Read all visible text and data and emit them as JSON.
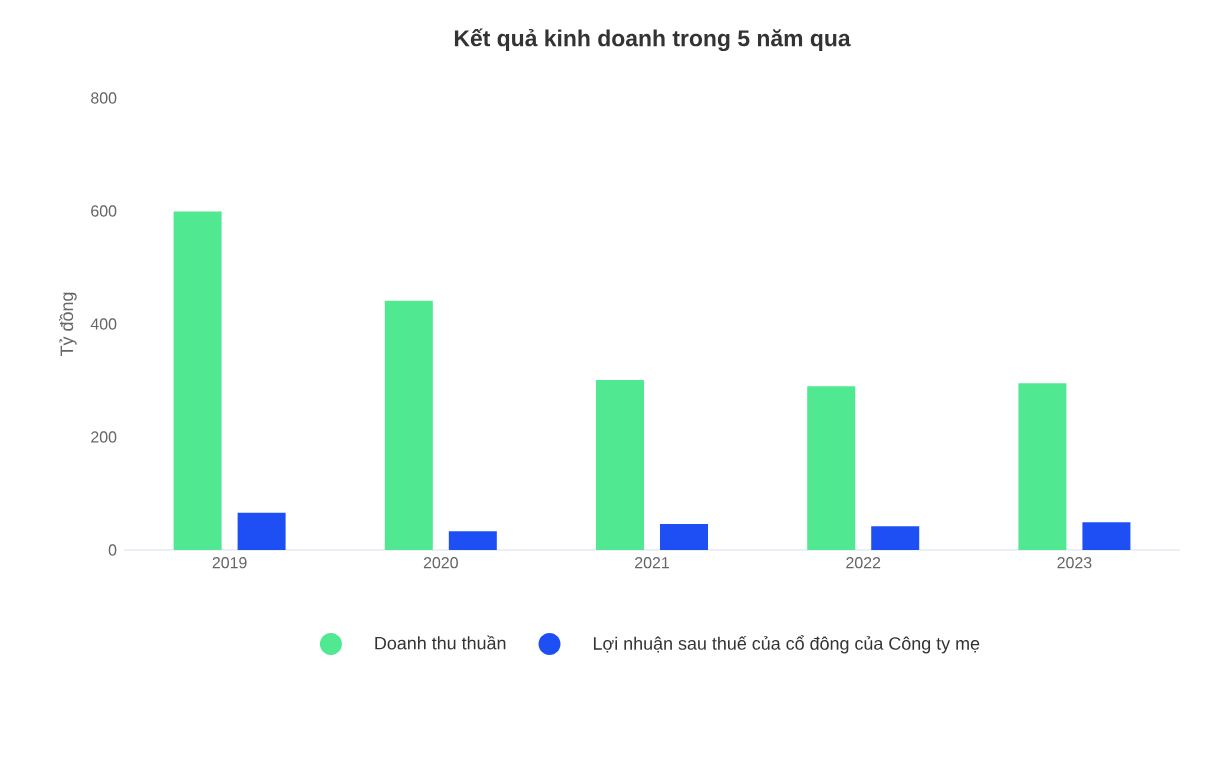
{
  "chart_data": {
    "type": "bar",
    "title": "Kết quả kinh doanh trong 5 năm qua",
    "ylabel": "Tỷ đồng",
    "categories": [
      "2019",
      "2020",
      "2021",
      "2022",
      "2023"
    ],
    "series": [
      {
        "name": "Doanh thu thuần",
        "color": "#50e891",
        "values": [
          599,
          441,
          301,
          290,
          295
        ]
      },
      {
        "name": "Lợi nhuận sau thuế của cổ đông của Công ty mẹ",
        "color": "#1e4ff5",
        "values": [
          66,
          33,
          46,
          42,
          49
        ]
      }
    ],
    "ylim": [
      0,
      800
    ],
    "yticks": [
      0,
      200,
      400,
      600,
      800
    ],
    "legend": "bottom"
  }
}
